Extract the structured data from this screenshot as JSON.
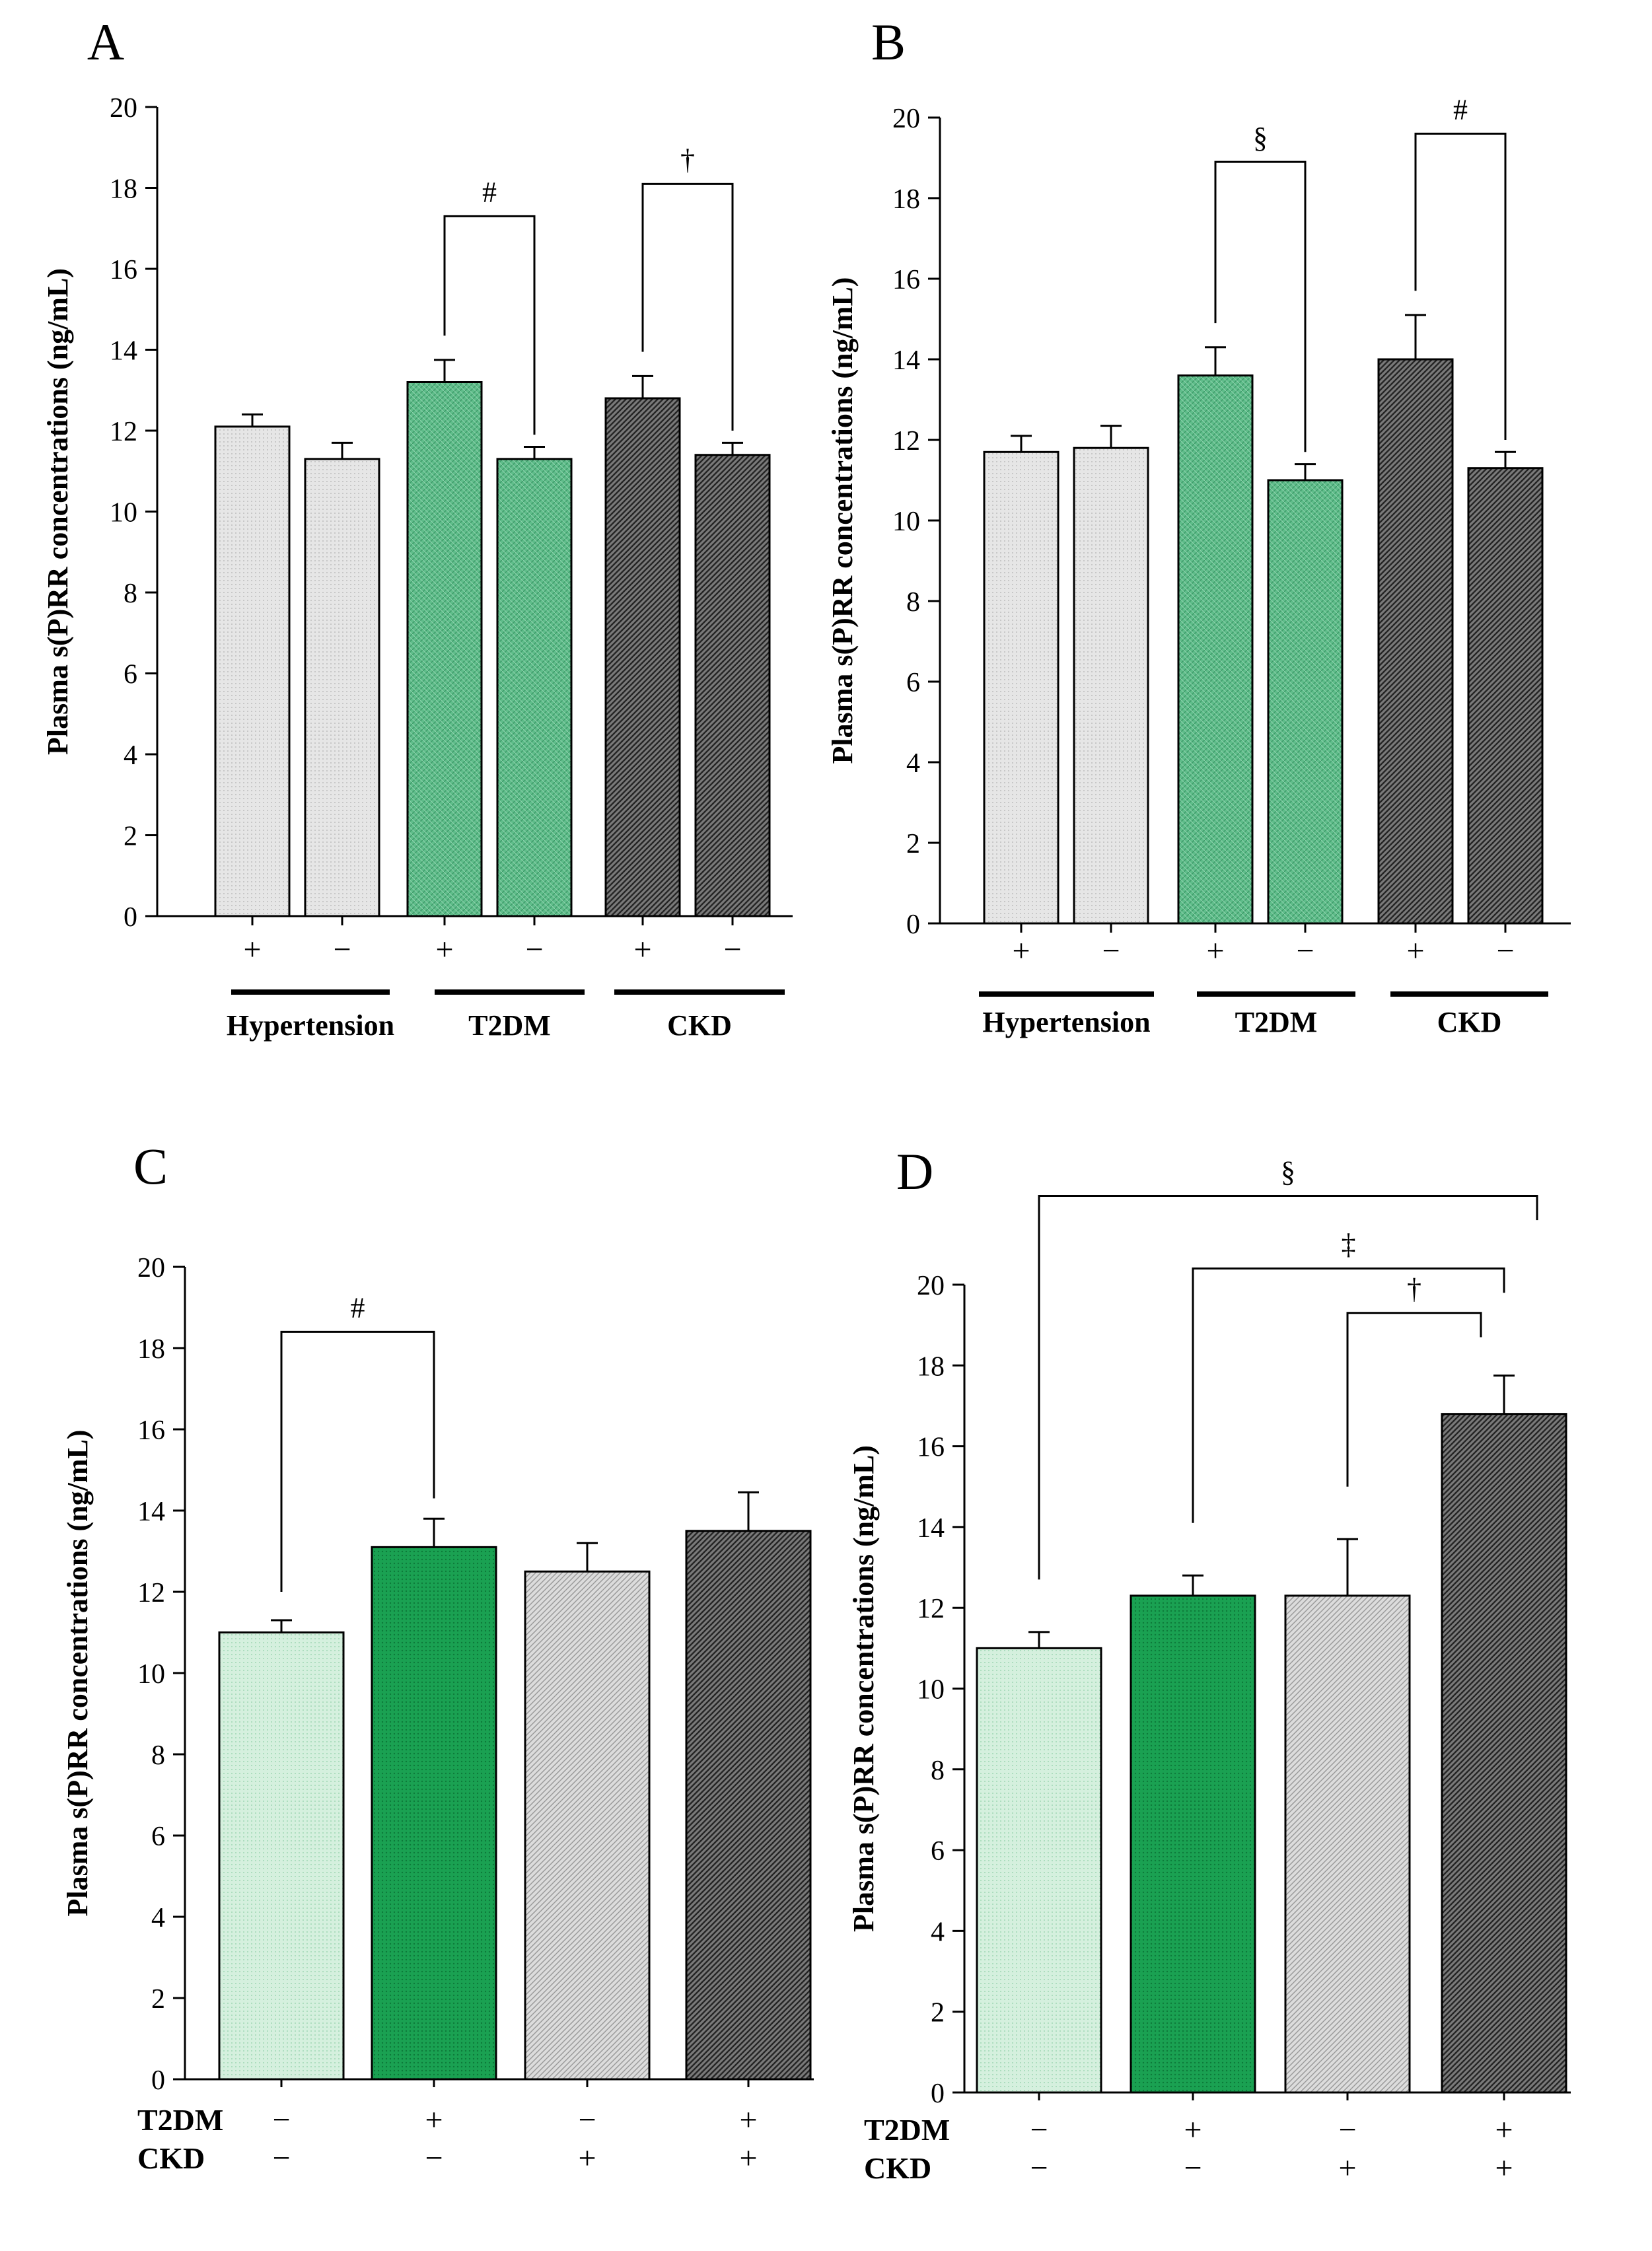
{
  "colors": {
    "light_gray": "#e4e4e4",
    "green": "#5dbb88",
    "dark_gray": "#4a4a4a",
    "light_green": "#cdeed8",
    "dark_green": "#16a050",
    "mid_gray": "#d2d2d2",
    "axis": "#000000"
  },
  "chart_data": [
    {
      "panel": "A",
      "type": "bar",
      "ylabel": "Plasma s(P)RR concentrations (ng/mL)",
      "ylim": [
        0,
        20
      ],
      "yticks": [
        0,
        2,
        4,
        6,
        8,
        10,
        12,
        14,
        16,
        18,
        20
      ],
      "categories": [
        "+",
        "−",
        "+",
        "−",
        "+",
        "−"
      ],
      "values": [
        12.1,
        11.3,
        13.2,
        11.3,
        12.8,
        11.4
      ],
      "errors": [
        0.3,
        0.4,
        0.55,
        0.3,
        0.55,
        0.3
      ],
      "fills": [
        "light_gray",
        "light_gray",
        "green",
        "green",
        "dark_gray",
        "dark_gray"
      ],
      "groups": [
        {
          "label": "Hypertension",
          "from": 0,
          "to": 1
        },
        {
          "label": "T2DM",
          "from": 2,
          "to": 3
        },
        {
          "label": "CKD",
          "from": 4,
          "to": 5
        }
      ],
      "significance": [
        {
          "from": 2,
          "to": 3,
          "symbol": "#",
          "level": 17.3
        },
        {
          "from": 4,
          "to": 5,
          "symbol": "†",
          "level": 18.1
        }
      ]
    },
    {
      "panel": "B",
      "type": "bar",
      "ylabel": "Plasma s(P)RR concentrations (ng/mL)",
      "ylim": [
        0,
        20
      ],
      "yticks": [
        0,
        2,
        4,
        6,
        8,
        10,
        12,
        14,
        16,
        18,
        20
      ],
      "categories": [
        "+",
        "−",
        "+",
        "−",
        "+",
        "−"
      ],
      "values": [
        11.7,
        11.8,
        13.6,
        11.0,
        14.0,
        11.3
      ],
      "errors": [
        0.4,
        0.55,
        0.7,
        0.4,
        1.1,
        0.4
      ],
      "fills": [
        "light_gray",
        "light_gray",
        "green",
        "green",
        "dark_gray",
        "dark_gray"
      ],
      "groups": [
        {
          "label": "Hypertension",
          "from": 0,
          "to": 1
        },
        {
          "label": "T2DM",
          "from": 2,
          "to": 3
        },
        {
          "label": "CKD",
          "from": 4,
          "to": 5
        }
      ],
      "significance": [
        {
          "from": 2,
          "to": 3,
          "symbol": "§",
          "level": 18.9
        },
        {
          "from": 4,
          "to": 5,
          "symbol": "#",
          "level": 19.6
        }
      ]
    },
    {
      "panel": "C",
      "type": "bar",
      "ylabel": "Plasma s(P)RR concentrations (ng/mL)",
      "ylim": [
        0,
        20
      ],
      "yticks": [
        0,
        2,
        4,
        6,
        8,
        10,
        12,
        14,
        16,
        18,
        20
      ],
      "row_labels": [
        "T2DM",
        "CKD"
      ],
      "rows": [
        [
          "−",
          "+",
          "−",
          "+"
        ],
        [
          "−",
          "−",
          "+",
          "+"
        ]
      ],
      "values": [
        11.0,
        13.1,
        12.5,
        13.5
      ],
      "errors": [
        0.3,
        0.7,
        0.7,
        0.95
      ],
      "fills": [
        "light_green",
        "dark_green",
        "mid_gray",
        "dark_gray"
      ],
      "significance": [
        {
          "from": 0,
          "to": 1,
          "symbol": "#",
          "level": 18.4
        }
      ]
    },
    {
      "panel": "D",
      "type": "bar",
      "ylabel": "Plasma s(P)RR concentrations (ng/mL)",
      "ylim": [
        0,
        20
      ],
      "yticks": [
        0,
        2,
        4,
        6,
        8,
        10,
        12,
        14,
        16,
        18,
        20
      ],
      "row_labels": [
        "T2DM",
        "CKD"
      ],
      "rows": [
        [
          "−",
          "+",
          "−",
          "+"
        ],
        [
          "−",
          "−",
          "+",
          "+"
        ]
      ],
      "values": [
        11.0,
        12.3,
        12.3,
        16.8
      ],
      "errors": [
        0.4,
        0.5,
        1.4,
        0.95
      ],
      "fills": [
        "light_green",
        "dark_green",
        "mid_gray",
        "dark_gray"
      ],
      "significance": [
        {
          "from": 0,
          "to": 3,
          "symbol": "§",
          "level": 22.2
        },
        {
          "from": 1,
          "to": 3,
          "symbol": "‡",
          "level": 20.4
        },
        {
          "from": 2,
          "to": 3,
          "symbol": "†",
          "level": 19.3
        }
      ]
    }
  ]
}
